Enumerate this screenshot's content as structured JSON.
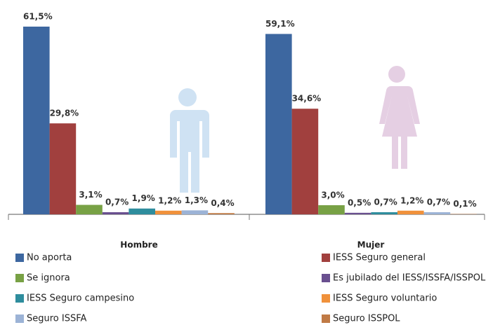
{
  "chart_data": {
    "type": "bar",
    "categories": [
      "Hombre",
      "Mujer"
    ],
    "series": [
      {
        "name": "No aporta",
        "color": "#3d67a0",
        "values": [
          61.5,
          59.1
        ],
        "value_labels": [
          "61,5%",
          "59,1%"
        ]
      },
      {
        "name": "IESS Seguro general",
        "color": "#a1403e",
        "values": [
          29.8,
          34.6
        ],
        "value_labels": [
          "29,8%",
          "34,6%"
        ]
      },
      {
        "name": "Se ignora",
        "color": "#78a145",
        "values": [
          3.1,
          3.0
        ],
        "value_labels": [
          "3,1%",
          "3,0%"
        ]
      },
      {
        "name": "Es jubilado del IESS/ISSFA/ISSPOL",
        "color": "#694f8f",
        "values": [
          0.7,
          0.5
        ],
        "value_labels": [
          "0,7%",
          "0,5%"
        ]
      },
      {
        "name": "IESS Seguro campesino",
        "color": "#2e8d9d",
        "values": [
          1.9,
          0.7
        ],
        "value_labels": [
          "1,9%",
          "0,7%"
        ]
      },
      {
        "name": "IESS Seguro voluntario",
        "color": "#f0913b",
        "values": [
          1.2,
          1.2
        ],
        "value_labels": [
          "1,2%",
          "1,2%"
        ]
      },
      {
        "name": "Seguro ISSFA",
        "color": "#9cb3d6",
        "values": [
          1.3,
          0.7
        ],
        "value_labels": [
          "1,3%",
          "0,7%"
        ]
      },
      {
        "name": "Seguro ISSPOL",
        "color": "#c07a45",
        "values": [
          0.4,
          0.1
        ],
        "value_labels": [
          "0,4%",
          "0,1%"
        ]
      }
    ]
  }
}
